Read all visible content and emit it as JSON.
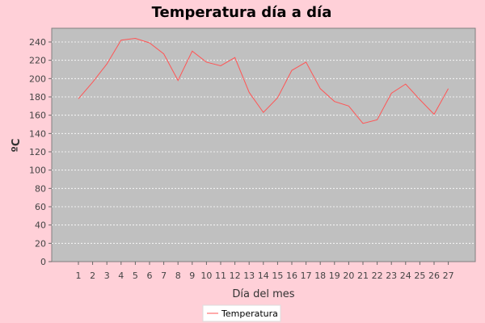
{
  "chart_data": {
    "type": "line",
    "title": "Temperatura día a día",
    "xlabel": "Día del mes",
    "ylabel": "ºC",
    "ylim": [
      0,
      255
    ],
    "yticks": [
      0,
      20,
      40,
      60,
      80,
      100,
      120,
      140,
      160,
      180,
      200,
      220,
      240
    ],
    "grid": true,
    "legend_position": "bottom-center",
    "categories": [
      "1",
      "2",
      "3",
      "4",
      "5",
      "6",
      "7",
      "8",
      "9",
      "10",
      "11",
      "12",
      "13",
      "14",
      "15",
      "16",
      "17",
      "18",
      "19",
      "20",
      "21",
      "22",
      "23",
      "24",
      "25",
      "26",
      "27"
    ],
    "series": [
      {
        "name": "Temperatura",
        "color": "#ff5555",
        "values": [
          178,
          196,
          216,
          242,
          244,
          239,
          227,
          198,
          230,
          218,
          214,
          223,
          185,
          163,
          179,
          209,
          218,
          189,
          175,
          170,
          151,
          155,
          184,
          194,
          177,
          161,
          189
        ]
      }
    ],
    "colors": {
      "page_background": "#ffd0d8",
      "plot_background": "#c0c0c0",
      "gridline": "#ffffff"
    }
  }
}
